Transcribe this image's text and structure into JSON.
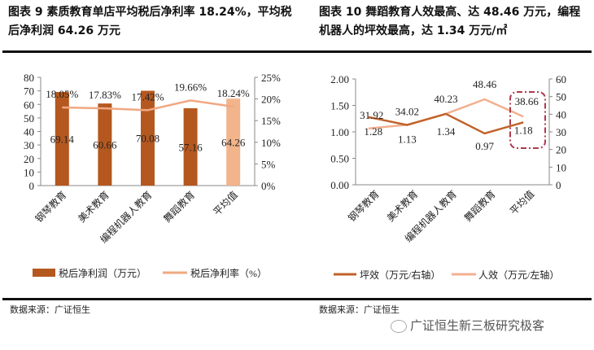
{
  "left_title": "图表 9 素质教育单店平均税后净利率 18.24%，平均税后净利润 64.26 万元",
  "right_title": "图表 10 舞蹈教育人效最高、达 48.46 万元，编程机器人的坪效最高，达 1.34 万元/㎡",
  "left_source": "数据来源：广证恒生",
  "right_source": "数据来源：广证恒生",
  "watermark": "广证恒生新三板研究极客",
  "chart_data": [
    {
      "type": "bar",
      "categories": [
        "钢琴教育",
        "美术教育",
        "编程机器人教育",
        "舞蹈教育",
        "平均值"
      ],
      "series": [
        {
          "name": "税后净利润（万元）",
          "type": "bar",
          "axis": "left",
          "values": [
            69.14,
            60.66,
            70.08,
            57.16,
            64.26
          ],
          "labels": [
            "69.14",
            "60.66",
            "70.08",
            "57.16",
            "64.26"
          ],
          "color": "#b5581f",
          "highlight_color": "#f2b48a"
        },
        {
          "name": "税后净利率（%）",
          "type": "line",
          "axis": "right",
          "values": [
            18.05,
            17.83,
            17.42,
            19.66,
            18.24
          ],
          "labels": [
            "18.05%",
            "17.83%",
            "17.42%",
            "19.66%",
            "18.24%"
          ],
          "color": "#f0a882"
        }
      ],
      "left_axis": {
        "ylim": [
          0,
          80
        ],
        "ticks": [
          "0",
          "10",
          "20",
          "30",
          "40",
          "50",
          "60",
          "70",
          "80"
        ]
      },
      "right_axis": {
        "ylim": [
          0,
          25
        ],
        "ticks": [
          "0%",
          "5%",
          "10%",
          "15%",
          "20%",
          "25%"
        ]
      },
      "legend": "bottom",
      "grid": false
    },
    {
      "type": "line",
      "categories": [
        "钢琴教育",
        "美术教育",
        "编程机器人教育",
        "舞蹈教育",
        "平均值"
      ],
      "series": [
        {
          "name": "坪效（万元/右轴）",
          "axis": "left",
          "values": [
            1.28,
            1.13,
            1.34,
            0.97,
            1.18
          ],
          "labels": [
            "1.28",
            "1.13",
            "1.34",
            "0.97",
            "1.18"
          ],
          "color": "#c0622a"
        },
        {
          "name": "人效（万元/左轴）",
          "axis": "right",
          "values": [
            31.92,
            34.02,
            40.23,
            48.46,
            38.66
          ],
          "labels": [
            "31.92",
            "34.02",
            "40.23",
            "48.46",
            "38.66"
          ],
          "color": "#f2b090"
        }
      ],
      "left_axis": {
        "ylim": [
          0,
          2
        ],
        "ticks": [
          "0.00",
          "0.50",
          "1.00",
          "1.50",
          "2.00"
        ]
      },
      "right_axis": {
        "ylim": [
          0,
          60
        ],
        "ticks": [
          "0",
          "10",
          "20",
          "30",
          "40",
          "50",
          "60"
        ]
      },
      "highlight_box_color": "#b03a4a",
      "legend": "bottom",
      "grid": false
    }
  ]
}
